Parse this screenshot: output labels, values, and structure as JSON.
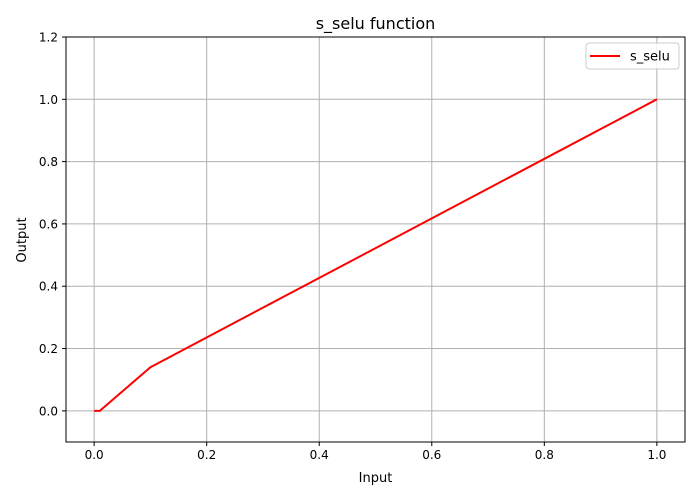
{
  "chart_data": {
    "type": "line",
    "title": "s_selu function",
    "xlabel": "Input",
    "ylabel": "Output",
    "xlim": [
      -0.05,
      1.05
    ],
    "ylim": [
      -0.1,
      1.2
    ],
    "x_ticks": [
      0.0,
      0.2,
      0.4,
      0.6,
      0.8,
      1.0
    ],
    "x_tick_labels": [
      "0.0",
      "0.2",
      "0.4",
      "0.6",
      "0.8",
      "1.0"
    ],
    "y_ticks": [
      0.0,
      0.2,
      0.4,
      0.6,
      0.8,
      1.0,
      1.2
    ],
    "y_tick_labels": [
      "0.0",
      "0.2",
      "0.4",
      "0.6",
      "0.8",
      "1.0",
      "1.2"
    ],
    "grid": true,
    "legend_position": "top-right",
    "series": [
      {
        "name": "s_selu",
        "color": "#ff0000",
        "x": [
          0.0,
          0.01,
          0.1,
          1.0
        ],
        "y": [
          0.0,
          0.0,
          0.14,
          1.0
        ]
      }
    ]
  }
}
